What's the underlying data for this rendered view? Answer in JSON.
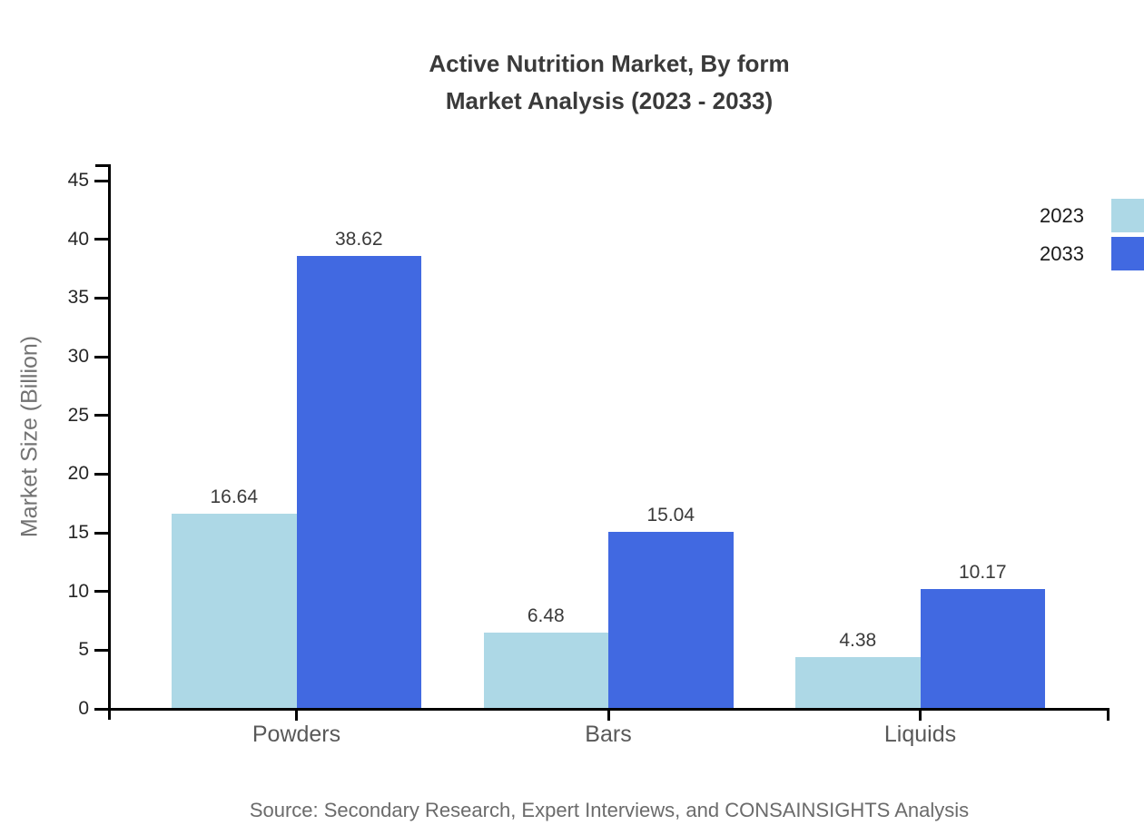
{
  "page": {
    "background": "#ffffff"
  },
  "chart_data": {
    "type": "bar",
    "title_line1": "Active Nutrition Market, By form",
    "title_line2": "Market Analysis (2023 - 2033)",
    "ylabel": "Market Size (Billion)",
    "xlabel": "",
    "categories": [
      "Powders",
      "Bars",
      "Liquids"
    ],
    "series": [
      {
        "name": "2023",
        "color": "#add8e6",
        "values": [
          16.64,
          6.48,
          4.38
        ]
      },
      {
        "name": "2033",
        "color": "#4169e1",
        "values": [
          38.62,
          15.04,
          10.17
        ]
      }
    ],
    "value_labels": [
      [
        "16.64",
        "6.48",
        "4.38"
      ],
      [
        "38.62",
        "15.04",
        "10.17"
      ]
    ],
    "ylim": [
      0,
      45
    ],
    "yticks": [
      0,
      5,
      10,
      15,
      20,
      25,
      30,
      35,
      40,
      45
    ],
    "grid": false,
    "legend_position": "top-right",
    "source_note": "Source: Secondary Research, Expert Interviews, and CONSAINSIGHTS Analysis"
  },
  "colors": {
    "axis": "#000000",
    "title_text": "#3a3a3a",
    "ytick_text": "#262626",
    "category_text": "#595959",
    "ylabel_text": "#737373",
    "value_text": "#3a3a3a",
    "legend_text": "#1a1a1a",
    "source_text": "#6b6b6b",
    "series_2023": "#add8e6",
    "series_2033": "#4169e1"
  }
}
